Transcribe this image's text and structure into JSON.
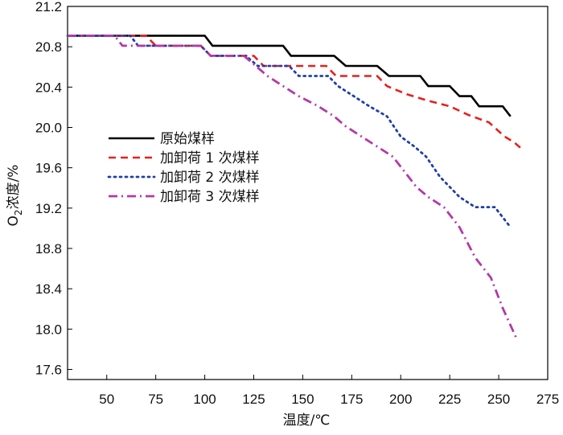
{
  "chart_data": {
    "type": "line",
    "xlabel": "温度/℃",
    "ylabel_main": "O",
    "ylabel_sub": "2",
    "ylabel_rest": "浓度/%",
    "xlim": [
      30,
      275
    ],
    "ylim": [
      17.5,
      21.2
    ],
    "xticks": [
      50,
      75,
      100,
      125,
      150,
      175,
      200,
      225,
      250,
      275
    ],
    "yticks": [
      17.6,
      18.0,
      18.4,
      18.8,
      19.2,
      19.6,
      20.0,
      20.4,
      20.8,
      21.2
    ],
    "ytick_labels": [
      "17.6",
      "18.0",
      "18.4",
      "18.8",
      "19.2",
      "19.6",
      "20.0",
      "20.4",
      "20.8",
      "21.2"
    ],
    "grid": false,
    "legend_position": "left-middle",
    "series": [
      {
        "name": "原始煤样",
        "color": "#000000",
        "dash": "solid",
        "points": [
          [
            30,
            20.91
          ],
          [
            100,
            20.91
          ],
          [
            104,
            20.81
          ],
          [
            140,
            20.81
          ],
          [
            144,
            20.71
          ],
          [
            166,
            20.71
          ],
          [
            172,
            20.61
          ],
          [
            188,
            20.61
          ],
          [
            194,
            20.51
          ],
          [
            210,
            20.51
          ],
          [
            214,
            20.41
          ],
          [
            225,
            20.41
          ],
          [
            230,
            20.31
          ],
          [
            236,
            20.31
          ],
          [
            240,
            20.21
          ],
          [
            252,
            20.21
          ],
          [
            256,
            20.11
          ]
        ]
      },
      {
        "name": "加卸荷 1 次煤样",
        "color": "#e8201c",
        "dash": "dashed",
        "points": [
          [
            30,
            20.91
          ],
          [
            70,
            20.91
          ],
          [
            75,
            20.81
          ],
          [
            98,
            20.81
          ],
          [
            103,
            20.71
          ],
          [
            125,
            20.71
          ],
          [
            130,
            20.61
          ],
          [
            162,
            20.61
          ],
          [
            167,
            20.51
          ],
          [
            188,
            20.51
          ],
          [
            193,
            20.41
          ],
          [
            203,
            20.33
          ],
          [
            213,
            20.27
          ],
          [
            225,
            20.21
          ],
          [
            235,
            20.12
          ],
          [
            245,
            20.05
          ],
          [
            253,
            19.91
          ],
          [
            258,
            19.85
          ],
          [
            261,
            19.8
          ]
        ]
      },
      {
        "name": "加卸荷 2 次煤样",
        "color": "#1f3fa8",
        "dash": "dotted",
        "points": [
          [
            30,
            20.91
          ],
          [
            62,
            20.91
          ],
          [
            66,
            20.81
          ],
          [
            98,
            20.81
          ],
          [
            103,
            20.71
          ],
          [
            121,
            20.71
          ],
          [
            127,
            20.61
          ],
          [
            143,
            20.61
          ],
          [
            148,
            20.51
          ],
          [
            163,
            20.51
          ],
          [
            168,
            20.41
          ],
          [
            176,
            20.31
          ],
          [
            184,
            20.21
          ],
          [
            193,
            20.11
          ],
          [
            200,
            19.91
          ],
          [
            207,
            19.81
          ],
          [
            213,
            19.71
          ],
          [
            220,
            19.51
          ],
          [
            230,
            19.31
          ],
          [
            238,
            19.21
          ],
          [
            248,
            19.21
          ],
          [
            256,
            19.01
          ]
        ]
      },
      {
        "name": "加卸荷 3 次煤样",
        "color": "#b23aa8",
        "dash": "dashdot",
        "points": [
          [
            30,
            20.91
          ],
          [
            54,
            20.91
          ],
          [
            58,
            20.81
          ],
          [
            98,
            20.81
          ],
          [
            103,
            20.71
          ],
          [
            120,
            20.71
          ],
          [
            126,
            20.61
          ],
          [
            132,
            20.51
          ],
          [
            140,
            20.41
          ],
          [
            148,
            20.31
          ],
          [
            158,
            20.21
          ],
          [
            166,
            20.11
          ],
          [
            172,
            20.01
          ],
          [
            180,
            19.91
          ],
          [
            188,
            19.81
          ],
          [
            196,
            19.71
          ],
          [
            204,
            19.51
          ],
          [
            208,
            19.41
          ],
          [
            214,
            19.31
          ],
          [
            222,
            19.21
          ],
          [
            230,
            19.01
          ],
          [
            238,
            18.71
          ],
          [
            246,
            18.51
          ],
          [
            252,
            18.21
          ],
          [
            259,
            17.91
          ]
        ]
      }
    ]
  }
}
